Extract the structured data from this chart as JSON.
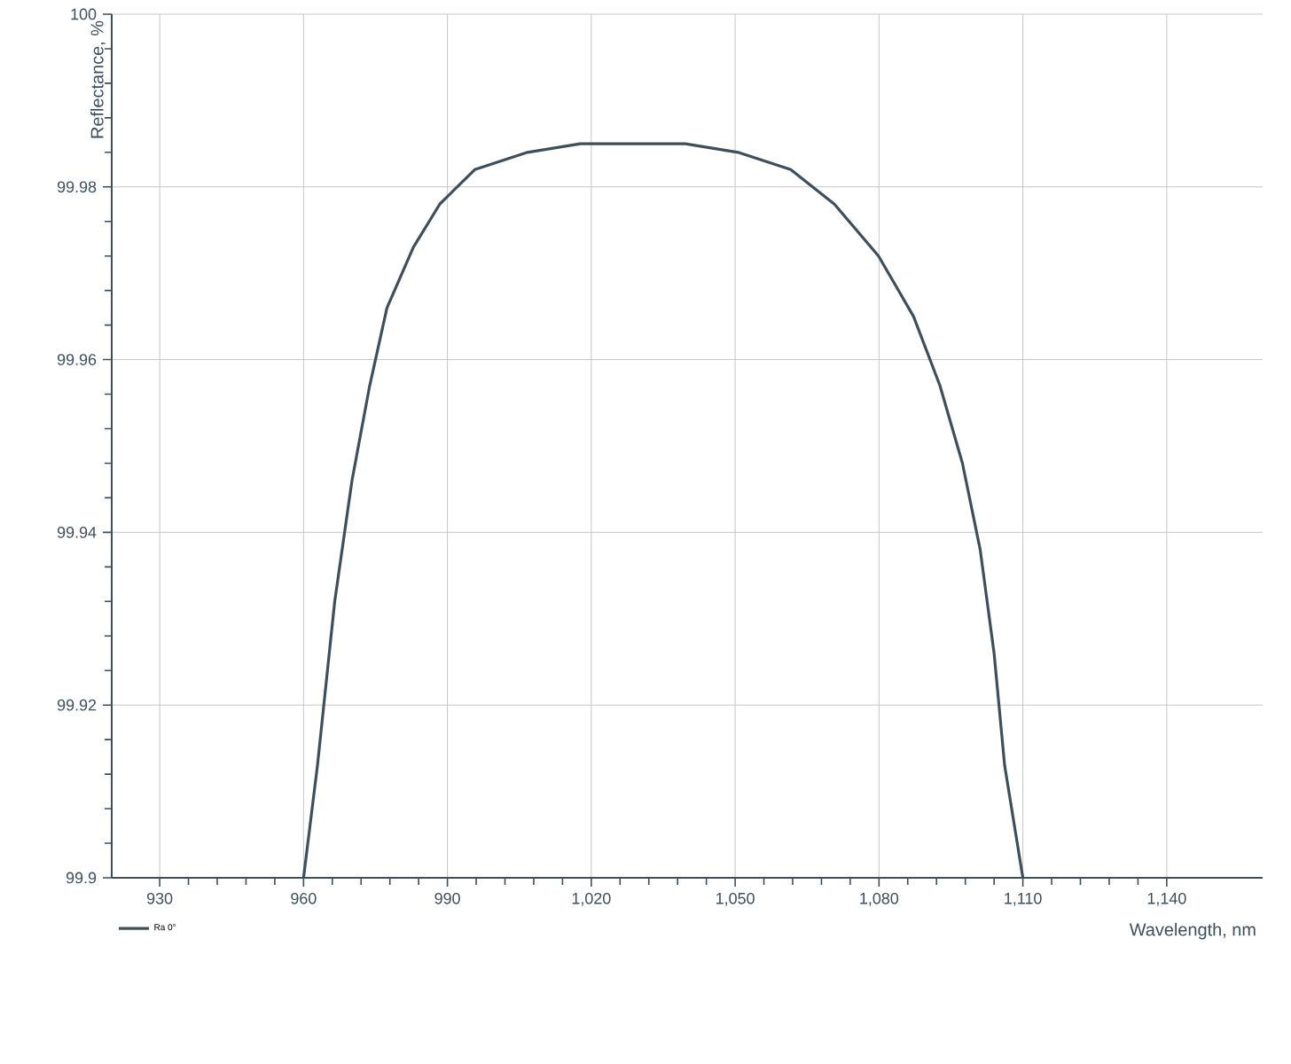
{
  "chart_data": {
    "type": "line",
    "xlabel": "Wavelength, nm",
    "ylabel": "Reflectance, %",
    "xlim": [
      920,
      1160
    ],
    "ylim": [
      99.9,
      100
    ],
    "xticks": [
      930,
      960,
      990,
      {
        "value": 1020,
        "label": "1,020"
      },
      {
        "value": 1050,
        "label": "1,050"
      },
      {
        "value": 1080,
        "label": "1,080"
      },
      {
        "value": 1110,
        "label": "1,110"
      },
      {
        "value": 1140,
        "label": "1,140"
      }
    ],
    "yticks": [
      99.9,
      99.92,
      99.94,
      99.96,
      99.98,
      100
    ],
    "grid": true,
    "legend": "bottom left",
    "marker": "none",
    "line_style": "solid",
    "series": [
      {
        "name": "Ra 0°",
        "color": "#3d4f5c",
        "x": [
          960,
          962.9,
          966.5,
          970.1,
          973.8,
          977.4,
          982.9,
          988.4,
          995.7,
          1006.7,
          1017.7,
          1028.7,
          1039.6,
          1050.6,
          1061.6,
          1070.7,
          1079.9,
          1087.2,
          1092.7,
          1097.4,
          1101.1,
          1104.0,
          1106.2,
          1110
        ],
        "values": [
          99.9,
          99.913,
          99.932,
          99.946,
          99.957,
          99.966,
          99.973,
          99.978,
          99.982,
          99.984,
          99.985,
          99.985,
          99.985,
          99.984,
          99.982,
          99.978,
          99.972,
          99.965,
          99.957,
          99.948,
          99.938,
          99.926,
          99.913,
          99.9
        ]
      }
    ]
  }
}
